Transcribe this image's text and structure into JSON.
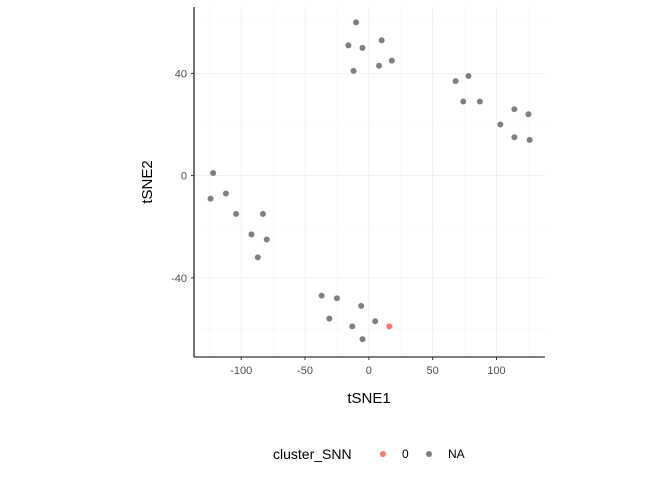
{
  "chart_data": {
    "type": "scatter",
    "xlabel": "tSNE1",
    "ylabel": "tSNE2",
    "xlim": [
      -137,
      138
    ],
    "ylim": [
      -71,
      66
    ],
    "xticks": [
      -100,
      -50,
      0,
      50,
      100
    ],
    "yticks": [
      -40,
      0,
      40
    ],
    "grid": true,
    "legend": {
      "title": "cluster_SNN",
      "position": "bottom",
      "entries": [
        {
          "label": "0",
          "color": "#F8766D"
        },
        {
          "label": "NA",
          "color": "#7F7F7F"
        }
      ]
    },
    "series": [
      {
        "name": "0",
        "color": "#F8766D",
        "points": [
          [
            16,
            -59
          ]
        ]
      },
      {
        "name": "NA",
        "color": "#7F7F7F",
        "points": [
          [
            -10,
            60
          ],
          [
            -16,
            51
          ],
          [
            -5,
            50
          ],
          [
            10,
            53
          ],
          [
            -12,
            41
          ],
          [
            8,
            43
          ],
          [
            18,
            45
          ],
          [
            68,
            37
          ],
          [
            78,
            39
          ],
          [
            74,
            29
          ],
          [
            87,
            29
          ],
          [
            103,
            20
          ],
          [
            114,
            26
          ],
          [
            125,
            24
          ],
          [
            114,
            15
          ],
          [
            126,
            14
          ],
          [
            -122,
            1
          ],
          [
            -112,
            -7
          ],
          [
            -124,
            -9
          ],
          [
            -104,
            -15
          ],
          [
            -83,
            -15
          ],
          [
            -92,
            -23
          ],
          [
            -80,
            -25
          ],
          [
            -87,
            -32
          ],
          [
            -37,
            -47
          ],
          [
            -25,
            -48
          ],
          [
            -6,
            -51
          ],
          [
            -31,
            -56
          ],
          [
            -13,
            -59
          ],
          [
            5,
            -57
          ],
          [
            -5,
            -64
          ]
        ]
      }
    ]
  }
}
